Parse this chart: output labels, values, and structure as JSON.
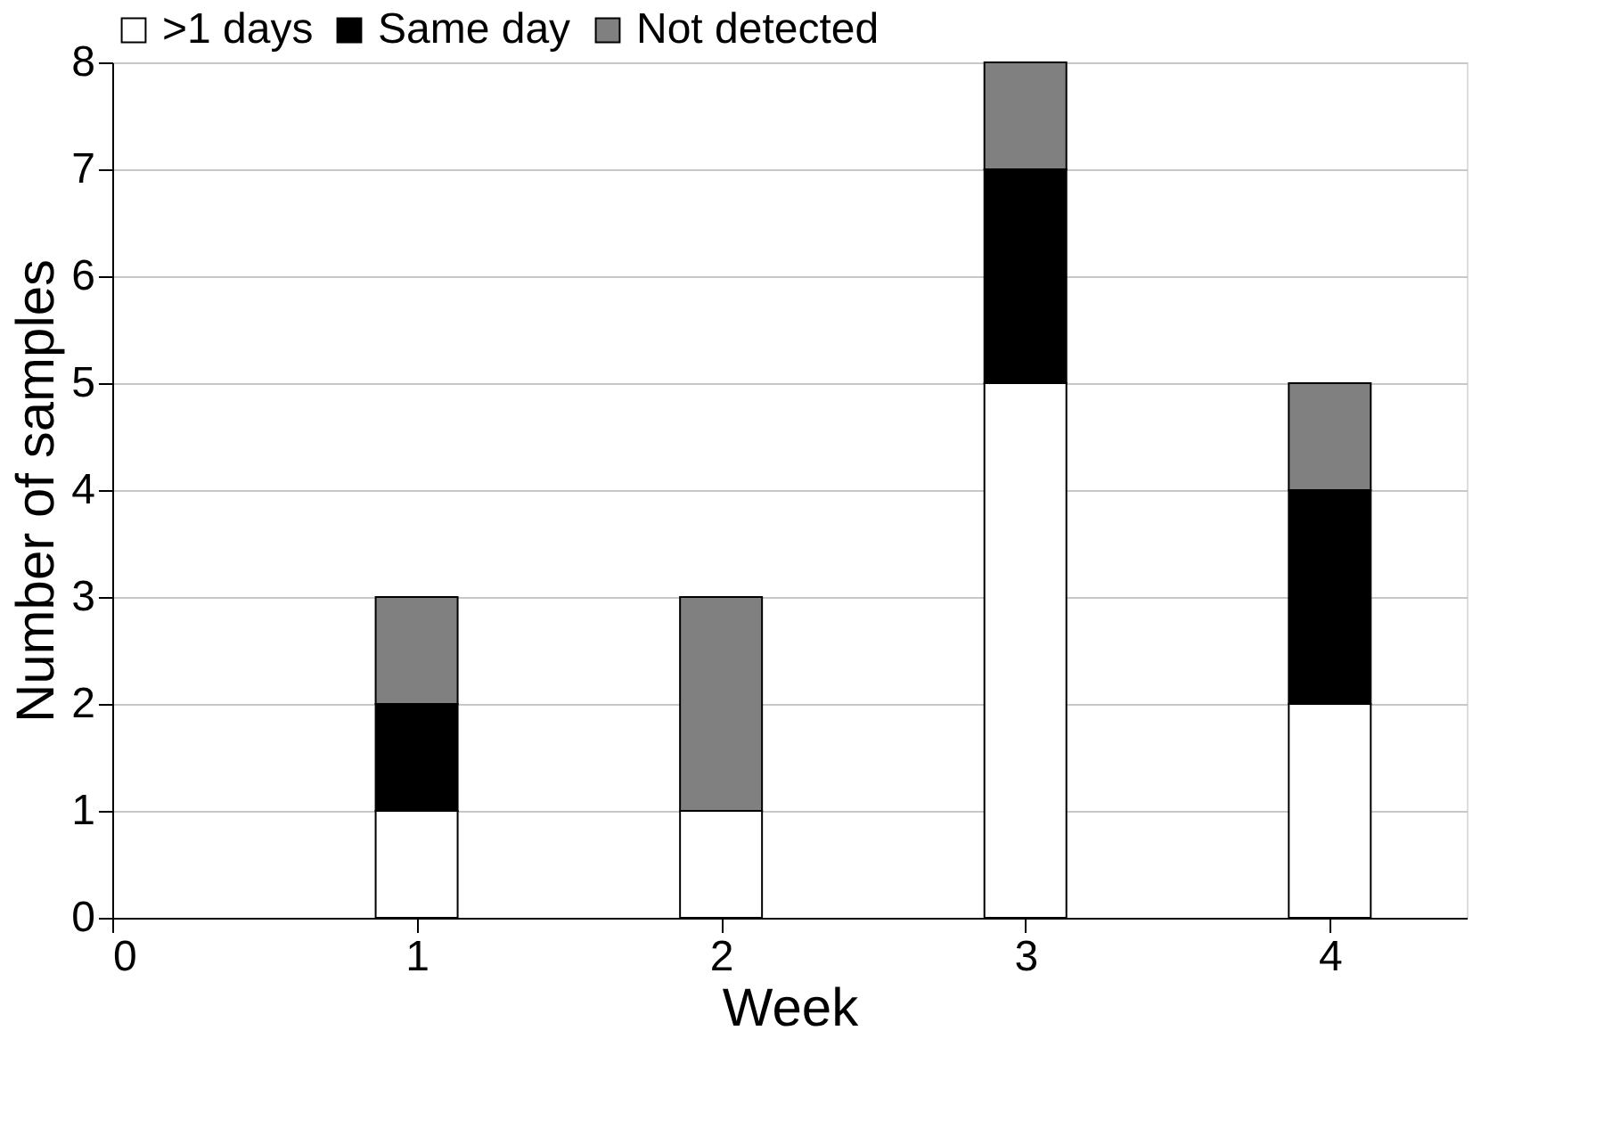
{
  "chart_data": {
    "type": "bar",
    "stacked": true,
    "xlabel": "Week",
    "ylabel": "Number of samples",
    "x": [
      1,
      2,
      3,
      4
    ],
    "series": [
      {
        "name": ">1 days",
        "color": "#ffffff",
        "values": [
          1,
          1,
          5,
          2
        ]
      },
      {
        "name": "Same day",
        "color": "#000000",
        "values": [
          1,
          0,
          2,
          2
        ]
      },
      {
        "name": "Not detected",
        "color": "#808080",
        "values": [
          1,
          2,
          1,
          1
        ]
      }
    ],
    "xlim": [
      0,
      4.45
    ],
    "xticks": [
      0,
      1,
      2,
      3,
      4
    ],
    "ylim": [
      0,
      8
    ],
    "yticks": [
      0,
      1,
      2,
      3,
      4,
      5,
      6,
      7,
      8
    ],
    "grid": "y",
    "legend": "top"
  }
}
